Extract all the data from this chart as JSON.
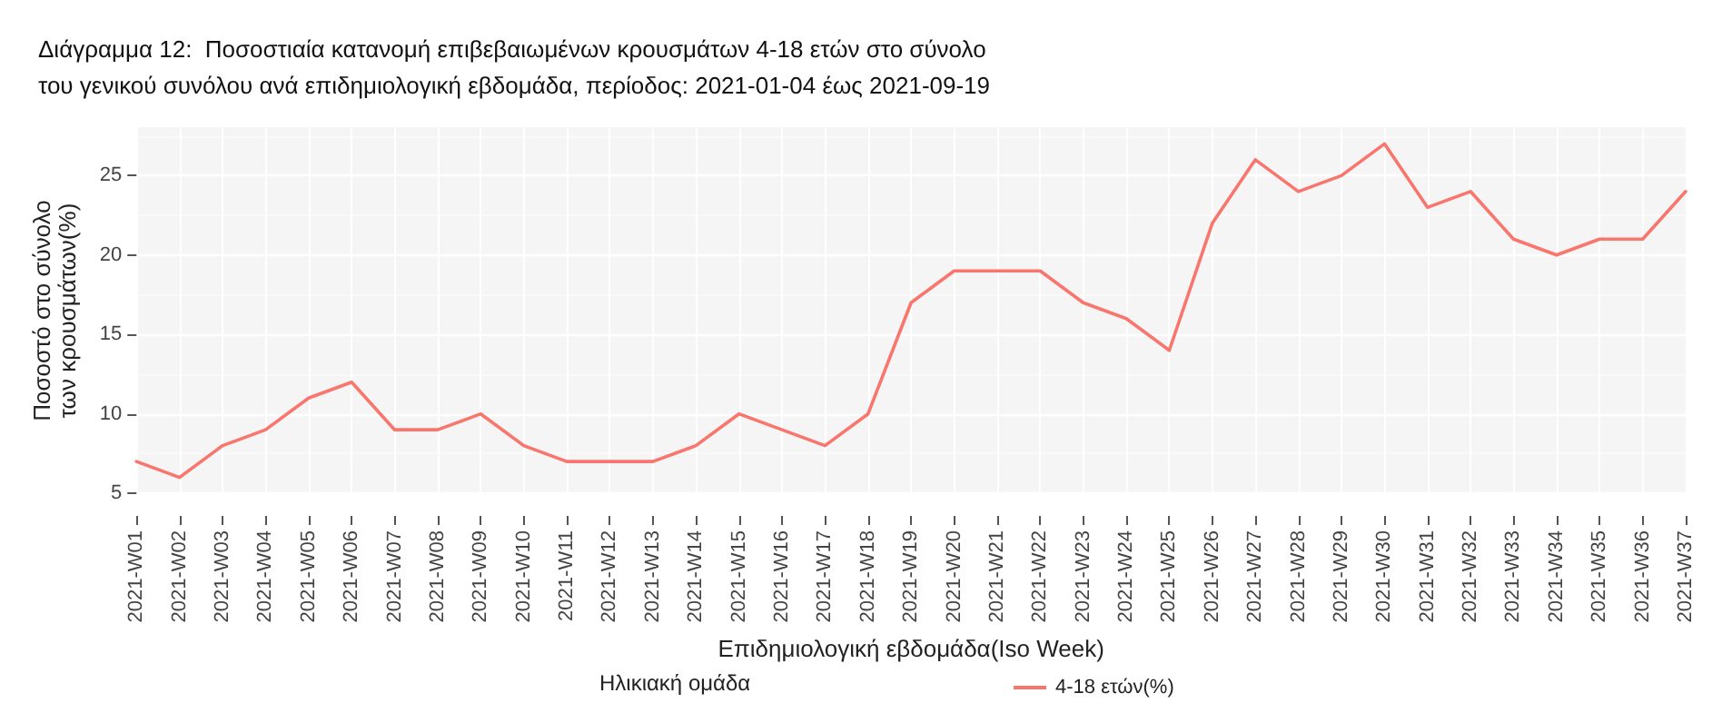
{
  "chart_data": {
    "type": "line",
    "title": "Διάγραμμα 12:  Ποσοστιαία κατανομή επιβεβαιωμένων κρουσμάτων 4-18 ετών στο σύνολο του γενικού συνόλου ανά επιδημιολογική εβδομάδα, περίοδος: 2021-01-04 έως 2021-09-19",
    "xlabel": "Επιδημιολογική εβδομάδα(Iso Week)",
    "ylabel": "Ποσοστό στο σύνολο\nτων κρουσμάτων(%)",
    "legend_title": "Ηλικιακή ομάδα",
    "categories": [
      "2021-W01",
      "2021-W02",
      "2021-W03",
      "2021-W04",
      "2021-W05",
      "2021-W06",
      "2021-W07",
      "2021-W08",
      "2021-W09",
      "2021-W10",
      "2021-W11",
      "2021-W12",
      "2021-W13",
      "2021-W14",
      "2021-W15",
      "2021-W16",
      "2021-W17",
      "2021-W18",
      "2021-W19",
      "2021-W20",
      "2021-W21",
      "2021-W22",
      "2021-W23",
      "2021-W24",
      "2021-W25",
      "2021-W26",
      "2021-W27",
      "2021-W28",
      "2021-W29",
      "2021-W30",
      "2021-W31",
      "2021-W32",
      "2021-W33",
      "2021-W34",
      "2021-W35",
      "2021-W36",
      "2021-W37"
    ],
    "series": [
      {
        "name": "4-18 ετών(%)",
        "color": "#f8766d",
        "values": [
          7,
          6,
          8,
          9,
          11,
          12,
          9,
          9,
          10,
          8,
          7,
          7,
          7,
          8,
          10,
          9,
          8,
          10,
          17,
          19,
          19,
          19,
          17,
          16,
          14,
          22,
          26,
          24,
          25,
          27,
          23,
          24,
          21,
          20,
          21,
          21,
          24
        ]
      }
    ],
    "ylim": [
      4.95,
      28.05
    ],
    "yticks": [
      5,
      10,
      15,
      20,
      25
    ],
    "grid": true,
    "legend": "bottom",
    "marker": "none",
    "line_style": "solid"
  }
}
